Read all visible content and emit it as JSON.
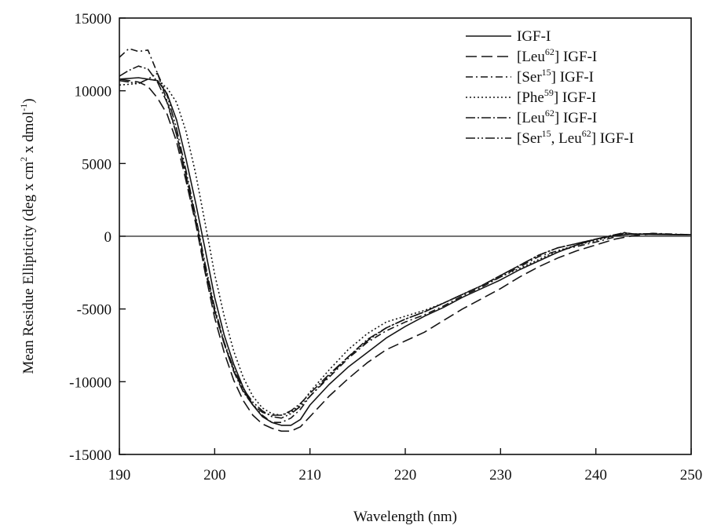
{
  "chart_data": {
    "type": "line",
    "title": "",
    "xlabel": "Wavelength (nm)",
    "ylabel": "Mean Residue Ellipticity (deg x cm2 x dmol-1)",
    "ylabel_parts": {
      "pre": "Mean Residue Ellipticity (deg x cm",
      "sup1": "2",
      "mid": " x dmol",
      "sup2": "-1",
      "post": ")"
    },
    "xlim": [
      190,
      250
    ],
    "ylim": [
      -15000,
      15000
    ],
    "xticks": [
      190,
      200,
      210,
      220,
      230,
      240,
      250
    ],
    "yticks": [
      -15000,
      -10000,
      -5000,
      0,
      5000,
      10000,
      15000
    ],
    "grid": false,
    "zero_line": true,
    "legend_position": "top-right",
    "series": [
      {
        "name": "IGF-I",
        "label_parts": [
          "IGF-I"
        ],
        "dash": "solid",
        "x": [
          190,
          192,
          194,
          195,
          196,
          197,
          198,
          199,
          200,
          201,
          202,
          203,
          204,
          205,
          206,
          207,
          208,
          209,
          210,
          212,
          214,
          216,
          218,
          220,
          222,
          224,
          226,
          228,
          230,
          232,
          234,
          236,
          238,
          240,
          242,
          244,
          246,
          248,
          250
        ],
        "y": [
          10800,
          10900,
          10700,
          9800,
          8000,
          5300,
          2300,
          -900,
          -4200,
          -6800,
          -8800,
          -10400,
          -11600,
          -12400,
          -12800,
          -13000,
          -13000,
          -12600,
          -11600,
          -10200,
          -9000,
          -8000,
          -7000,
          -6200,
          -5500,
          -4900,
          -4200,
          -3600,
          -3000,
          -2300,
          -1700,
          -1100,
          -600,
          -200,
          50,
          150,
          120,
          100,
          100
        ]
      },
      {
        "name": "[Leu62] IGF-I",
        "label_parts": [
          "[Leu",
          "62",
          "] IGF-I"
        ],
        "dash": "14,6",
        "x": [
          190,
          192,
          193,
          194,
          195,
          196,
          197,
          198,
          199,
          200,
          201,
          202,
          203,
          204,
          205,
          206,
          207,
          208,
          209,
          210,
          212,
          214,
          216,
          218,
          220,
          222,
          224,
          226,
          228,
          230,
          232,
          234,
          236,
          238,
          240,
          242,
          244,
          246,
          248,
          250
        ],
        "y": [
          10800,
          10600,
          10300,
          9500,
          8400,
          6500,
          3800,
          900,
          -2500,
          -5600,
          -8000,
          -9900,
          -11300,
          -12300,
          -12900,
          -13200,
          -13400,
          -13400,
          -13100,
          -12400,
          -11000,
          -9800,
          -8700,
          -7800,
          -7200,
          -6600,
          -5800,
          -5000,
          -4300,
          -3600,
          -2800,
          -2100,
          -1500,
          -1000,
          -600,
          -200,
          50,
          150,
          120,
          100
        ]
      },
      {
        "name": "[Ser15] IGF-I",
        "label_parts": [
          "[Ser",
          "15",
          "] IGF-I"
        ],
        "dash": "9,4,2,4",
        "x": [
          190,
          191,
          192,
          193,
          194,
          195,
          196,
          197,
          198,
          199,
          200,
          201,
          202,
          203,
          204,
          205,
          206,
          207,
          208,
          209,
          210,
          212,
          214,
          216,
          218,
          220,
          222,
          224,
          226,
          228,
          230,
          232,
          234,
          236,
          238,
          240,
          242,
          243,
          244,
          246,
          248,
          250
        ],
        "y": [
          12300,
          12900,
          12700,
          12800,
          11200,
          9300,
          7000,
          4100,
          1000,
          -2300,
          -5200,
          -7400,
          -9200,
          -10600,
          -11600,
          -12300,
          -12800,
          -12800,
          -12500,
          -11900,
          -11000,
          -9700,
          -8400,
          -7300,
          -6500,
          -5900,
          -5400,
          -4800,
          -4100,
          -3500,
          -2800,
          -2100,
          -1400,
          -1000,
          -700,
          -400,
          -50,
          250,
          100,
          200,
          150,
          100
        ]
      },
      {
        "name": "[Phe59] IGF-I",
        "label_parts": [
          "[Phe",
          "59",
          "] IGF-I"
        ],
        "dash": "2,3",
        "x": [
          190,
          192,
          193,
          194,
          195,
          196,
          197,
          198,
          199,
          200,
          201,
          202,
          203,
          204,
          205,
          206,
          207,
          208,
          209,
          210,
          212,
          214,
          216,
          218,
          220,
          222,
          224,
          226,
          228,
          230,
          232,
          234,
          236,
          238,
          240,
          242,
          244,
          246,
          248,
          250
        ],
        "y": [
          10400,
          10500,
          10800,
          10700,
          10200,
          9200,
          7200,
          4300,
          900,
          -2600,
          -5500,
          -7900,
          -9700,
          -11000,
          -11800,
          -12200,
          -12300,
          -12100,
          -11600,
          -10700,
          -9200,
          -7800,
          -6700,
          -5900,
          -5500,
          -5100,
          -4600,
          -4000,
          -3400,
          -2800,
          -2200,
          -1600,
          -1000,
          -600,
          -300,
          50,
          150,
          180,
          120,
          100
        ]
      },
      {
        "name": "[Leu62] IGF-I",
        "label_parts": [
          "[Leu",
          "62",
          "] IGF-I"
        ],
        "dash": "12,3,2,3",
        "x": [
          190,
          191,
          192,
          193,
          194,
          195,
          196,
          197,
          198,
          199,
          200,
          201,
          202,
          203,
          204,
          205,
          206,
          207,
          208,
          209,
          210,
          212,
          214,
          216,
          218,
          220,
          222,
          224,
          226,
          228,
          230,
          232,
          234,
          236,
          238,
          240,
          242,
          243,
          244,
          246,
          248,
          250
        ],
        "y": [
          11000,
          11400,
          11700,
          11500,
          10600,
          9200,
          7000,
          4200,
          1200,
          -2100,
          -5100,
          -7400,
          -9300,
          -10700,
          -11600,
          -12100,
          -12300,
          -12300,
          -12000,
          -11500,
          -10800,
          -9500,
          -8300,
          -7100,
          -6300,
          -5700,
          -5200,
          -4600,
          -4000,
          -3400,
          -2700,
          -2000,
          -1300,
          -800,
          -500,
          -200,
          100,
          250,
          150,
          180,
          130,
          100
        ]
      },
      {
        "name": "[Ser15, Leu62] IGF-I",
        "label_parts": [
          "[Ser",
          "15",
          ", Leu",
          "62",
          "] IGF-I"
        ],
        "dash": "12,3,2,3,2,3",
        "x": [
          190,
          191,
          192,
          193,
          194,
          195,
          196,
          197,
          198,
          199,
          200,
          201,
          202,
          203,
          204,
          205,
          206,
          207,
          208,
          209,
          210,
          212,
          214,
          216,
          218,
          220,
          222,
          224,
          226,
          228,
          230,
          232,
          234,
          236,
          238,
          240,
          242,
          243,
          244,
          246,
          248,
          250
        ],
        "y": [
          10700,
          10600,
          10500,
          10800,
          11200,
          9700,
          7400,
          4500,
          1400,
          -1900,
          -4900,
          -7300,
          -9100,
          -10500,
          -11400,
          -12000,
          -12400,
          -12500,
          -12200,
          -11700,
          -11000,
          -9600,
          -8300,
          -7200,
          -6300,
          -5700,
          -5200,
          -4600,
          -4000,
          -3400,
          -2700,
          -2000,
          -1300,
          -800,
          -500,
          -200,
          100,
          200,
          150,
          150,
          120,
          100
        ]
      }
    ]
  }
}
